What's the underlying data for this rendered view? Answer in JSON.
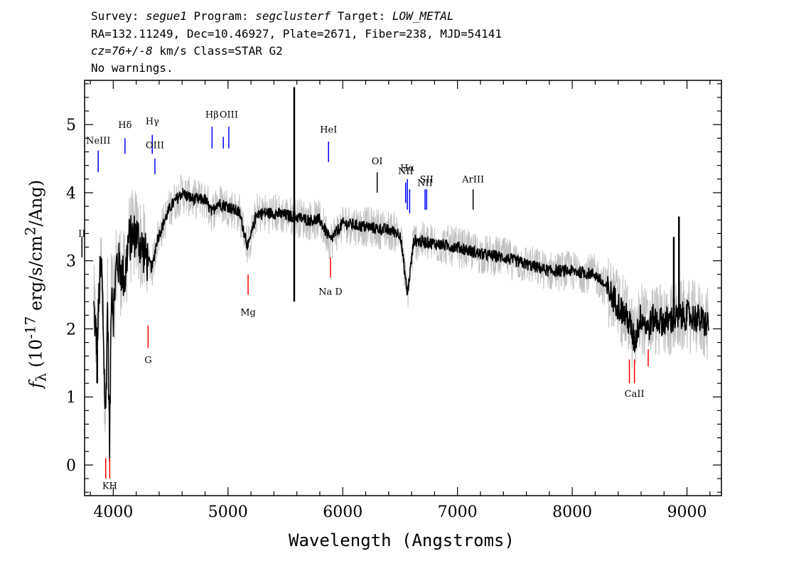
{
  "header": {
    "line1_prefix": "Survey: ",
    "survey": "segue1",
    "line1_mid": " Program: ",
    "program": "segclusterf",
    "line1_mid2": " Target: ",
    "target": "LOW_METAL",
    "line2": "RA=132.11249, Dec=10.46927, Plate=2671, Fiber=238, MJD=54141",
    "line3_cz": "cz=76+/-8",
    "line3_rest": " km/s Class=STAR G2",
    "line4": "No warnings."
  },
  "axes": {
    "xlabel": "Wavelength (Angstroms)",
    "ylabel_prefix": "f",
    "ylabel_sub": "λ",
    "ylabel_mid": " (10",
    "ylabel_exp": "-17",
    "ylabel_units": " erg/s/cm",
    "ylabel_exp2": "2",
    "ylabel_end": "/Ang)"
  },
  "chart_data": {
    "type": "line",
    "xlim": [
      3750,
      9300
    ],
    "ylim": [
      -0.45,
      5.65
    ],
    "xticks": [
      4000,
      5000,
      6000,
      7000,
      8000,
      9000
    ],
    "yticks": [
      0,
      1,
      2,
      3,
      4,
      5
    ],
    "x_minor_step": 200,
    "y_minor_step": 0.2,
    "grid": false,
    "series": [
      {
        "role": "flux",
        "color": "#000000",
        "anchors": [
          [
            3830,
            2.3
          ],
          [
            3860,
            1.7
          ],
          [
            3880,
            2.7
          ],
          [
            3900,
            2.9
          ],
          [
            3933,
            0.6
          ],
          [
            3950,
            2.4
          ],
          [
            3968,
            0.2
          ],
          [
            3985,
            2.8
          ],
          [
            4000,
            2.2
          ],
          [
            4030,
            3.0
          ],
          [
            4060,
            2.9
          ],
          [
            4102,
            2.7
          ],
          [
            4130,
            3.3
          ],
          [
            4200,
            3.4
          ],
          [
            4250,
            3.2
          ],
          [
            4300,
            3.0
          ],
          [
            4340,
            2.9
          ],
          [
            4380,
            3.3
          ],
          [
            4450,
            3.6
          ],
          [
            4500,
            3.8
          ],
          [
            4550,
            3.9
          ],
          [
            4600,
            4.0
          ],
          [
            4700,
            3.9
          ],
          [
            4800,
            3.9
          ],
          [
            4861,
            3.7
          ],
          [
            4900,
            3.85
          ],
          [
            5000,
            3.8
          ],
          [
            5100,
            3.7
          ],
          [
            5175,
            3.2
          ],
          [
            5250,
            3.7
          ],
          [
            5400,
            3.7
          ],
          [
            5577,
            3.65
          ],
          [
            5700,
            3.6
          ],
          [
            5800,
            3.6
          ],
          [
            5893,
            3.3
          ],
          [
            6000,
            3.55
          ],
          [
            6200,
            3.5
          ],
          [
            6400,
            3.45
          ],
          [
            6500,
            3.4
          ],
          [
            6563,
            2.5
          ],
          [
            6620,
            3.3
          ],
          [
            6800,
            3.25
          ],
          [
            7000,
            3.2
          ],
          [
            7200,
            3.1
          ],
          [
            7400,
            3.05
          ],
          [
            7600,
            2.95
          ],
          [
            7800,
            2.85
          ],
          [
            8000,
            2.85
          ],
          [
            8200,
            2.8
          ],
          [
            8300,
            2.6
          ],
          [
            8400,
            2.35
          ],
          [
            8498,
            2.1
          ],
          [
            8542,
            1.8
          ],
          [
            8600,
            2.2
          ],
          [
            8662,
            2.0
          ],
          [
            8700,
            2.15
          ],
          [
            8800,
            2.1
          ],
          [
            8900,
            2.15
          ],
          [
            9000,
            2.2
          ],
          [
            9100,
            2.15
          ],
          [
            9190,
            2.05
          ]
        ],
        "spikes": [
          [
            5577,
            5.55
          ],
          [
            5577,
            2.4
          ],
          [
            8885,
            3.35
          ],
          [
            8930,
            3.65
          ],
          [
            8950,
            2.3
          ],
          [
            3860,
            1.2
          ]
        ]
      },
      {
        "role": "error_envelope",
        "color": "#c0c0c0"
      }
    ],
    "line_markers": [
      {
        "label": "NeIII",
        "wave": 3869,
        "color": "blue",
        "y0": 4.3,
        "y1": 4.62,
        "ly": 4.72
      },
      {
        "label": "Hδ",
        "wave": 4102,
        "color": "blue",
        "y0": 4.57,
        "y1": 4.8,
        "ly": 4.95
      },
      {
        "label": "Hγ",
        "wave": 4340,
        "color": "blue",
        "y0": 4.57,
        "y1": 4.85,
        "ly": 5.0
      },
      {
        "label": "OIII",
        "wave": 4363,
        "color": "blue",
        "y0": 4.27,
        "y1": 4.5,
        "ly": 4.65
      },
      {
        "label": "Hβ",
        "wave": 4861,
        "color": "blue",
        "y0": 4.65,
        "y1": 4.97,
        "ly": 5.1
      },
      {
        "label": "",
        "wave": 4959,
        "color": "blue",
        "y0": 4.65,
        "y1": 4.82,
        "ly": 0
      },
      {
        "label": "OIII",
        "wave": 5007,
        "color": "blue",
        "y0": 4.65,
        "y1": 4.97,
        "ly": 5.1
      },
      {
        "label": "HeI",
        "wave": 5876,
        "color": "blue",
        "y0": 4.45,
        "y1": 4.75,
        "ly": 4.88
      },
      {
        "label": "OI",
        "wave": 6300,
        "color": "black",
        "y0": 4.0,
        "y1": 4.3,
        "ly": 4.42
      },
      {
        "label": "NII",
        "wave": 6548,
        "color": "blue",
        "y0": 3.85,
        "y1": 4.15,
        "ly": 4.27
      },
      {
        "label": "Hα",
        "wave": 6563,
        "color": "blue",
        "y0": 3.75,
        "y1": 4.2,
        "ly": 4.32
      },
      {
        "label": "",
        "wave": 6583,
        "color": "blue",
        "y0": 3.7,
        "y1": 4.05,
        "ly": 0
      },
      {
        "label": "NII",
        "wave": 6717,
        "color": "blue",
        "y0": 3.75,
        "y1": 4.05,
        "ly": 4.1
      },
      {
        "label": "SII",
        "wave": 6731,
        "color": "blue",
        "y0": 3.75,
        "y1": 4.05,
        "ly": 4.15
      },
      {
        "label": "ArIII",
        "wave": 7136,
        "color": "black",
        "y0": 3.75,
        "y1": 4.05,
        "ly": 4.15
      },
      {
        "label": "II",
        "wave": 3727,
        "color": "black",
        "y0": 3.05,
        "y1": 3.35,
        "ly": 3.35
      },
      {
        "label": "Mg",
        "wave": 5175,
        "color": "red",
        "y0": 2.5,
        "y1": 2.8,
        "ly": 2.2
      },
      {
        "label": "Na D",
        "wave": 5893,
        "color": "red",
        "y0": 2.75,
        "y1": 3.05,
        "ly": 2.5
      },
      {
        "label": "G",
        "wave": 4304,
        "color": "red",
        "y0": 1.72,
        "y1": 2.05,
        "ly": 1.5
      },
      {
        "label": "",
        "wave": 3934,
        "color": "red",
        "y0": -0.2,
        "y1": 0.1,
        "ly": 0
      },
      {
        "label": "KH",
        "wave": 3969,
        "color": "red",
        "y0": -0.2,
        "y1": 0.1,
        "ly": -0.35
      },
      {
        "label": "",
        "wave": 8498,
        "color": "red",
        "y0": 1.2,
        "y1": 1.55,
        "ly": 0
      },
      {
        "label": "CaII",
        "wave": 8542,
        "color": "red",
        "y0": 1.2,
        "y1": 1.55,
        "ly": 1.0
      },
      {
        "label": "",
        "wave": 8662,
        "color": "red",
        "y0": 1.45,
        "y1": 1.7,
        "ly": 0
      }
    ]
  }
}
